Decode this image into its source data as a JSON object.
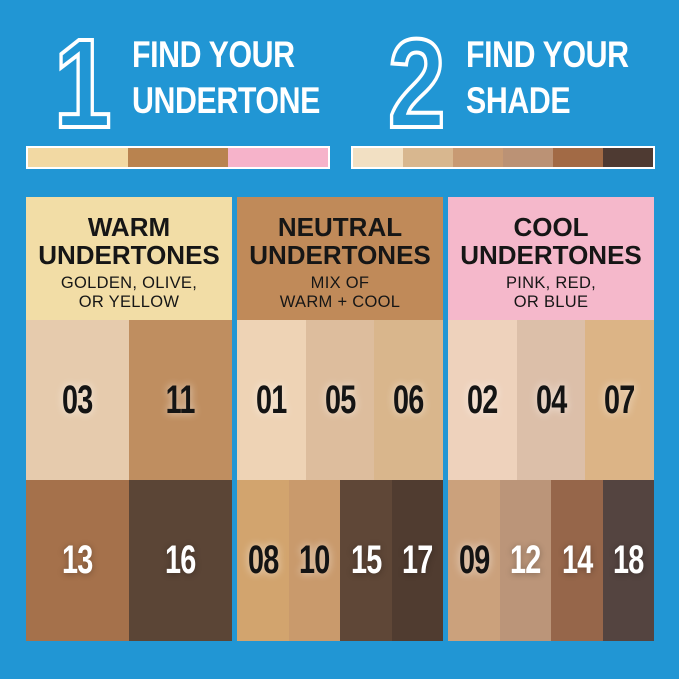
{
  "page": {
    "background": "#2196d4"
  },
  "steps": [
    {
      "number": "1",
      "title_line1": "FIND YOUR",
      "title_line2": "UNDERTONE",
      "strip": [
        "#f2d9a3",
        "#b9834f",
        "#f6b3ca"
      ]
    },
    {
      "number": "2",
      "title_line1": "FIND YOUR",
      "title_line2": "SHADE",
      "strip": [
        "#f2e0c3",
        "#d8b78f",
        "#c89a73",
        "#bb9275",
        "#a26a45",
        "#4e3a32"
      ]
    }
  ],
  "columns": [
    {
      "key": "warm",
      "title_line1": "WARM",
      "title_line2": "UNDERTONES",
      "subtitle_line1": "GOLDEN, OLIVE,",
      "subtitle_line2": "OR YELLOW",
      "header_bg": "#f2dda6",
      "light_row": [
        {
          "label": "03",
          "color": "#e6cbad"
        },
        {
          "label": "11",
          "color": "#bf8e60"
        }
      ],
      "dark_row": [
        {
          "label": "13",
          "color": "#a5714b"
        },
        {
          "label": "16",
          "color": "#5b4536"
        }
      ]
    },
    {
      "key": "neutral",
      "title_line1": "NEUTRAL",
      "title_line2": "UNDERTONES",
      "subtitle_line1": "MIX OF",
      "subtitle_line2": "WARM + COOL",
      "header_bg": "#c08a59",
      "light_row": [
        {
          "label": "01",
          "color": "#eed3b5"
        },
        {
          "label": "05",
          "color": "#ddbd9d"
        },
        {
          "label": "06",
          "color": "#d9b68c"
        }
      ],
      "dark_row": [
        {
          "label": "08",
          "color": "#d2a46e"
        },
        {
          "label": "10",
          "color": "#c99a6c"
        },
        {
          "label": "15",
          "color": "#5f4737"
        },
        {
          "label": "17",
          "color": "#503c30"
        }
      ]
    },
    {
      "key": "cool",
      "title_line1": "COOL",
      "title_line2": "UNDERTONES",
      "subtitle_line1": "PINK, RED,",
      "subtitle_line2": "OR BLUE",
      "header_bg": "#f5b8cb",
      "light_row": [
        {
          "label": "02",
          "color": "#eed2bc"
        },
        {
          "label": "04",
          "color": "#dcbfa9"
        },
        {
          "label": "07",
          "color": "#dcb486"
        }
      ],
      "dark_row": [
        {
          "label": "09",
          "color": "#cba17c"
        },
        {
          "label": "12",
          "color": "#bb9579"
        },
        {
          "label": "14",
          "color": "#96664a"
        },
        {
          "label": "18",
          "color": "#544440"
        }
      ]
    }
  ]
}
